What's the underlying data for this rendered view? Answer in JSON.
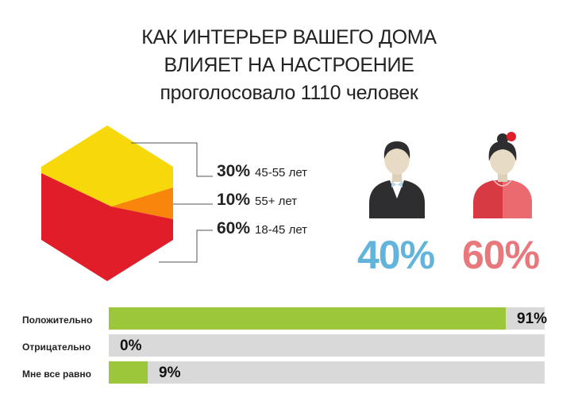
{
  "title": {
    "line1": "КАК ИНТЕРЬЕР ВАШЕГО ДОМА",
    "line2": "ВЛИЯЕТ НА НАСТРОЕНИЕ",
    "line3": "проголосовало 1110 человек"
  },
  "colors": {
    "yellow": "#f7d80a",
    "orange": "#f8860d",
    "red": "#e11d2a",
    "green": "#9dc73a",
    "track": "#d9d9d9",
    "male_blue": "#62b4dc",
    "female_pink": "#e9787d"
  },
  "chart_data": [
    {
      "type": "pie",
      "title": "",
      "slices": [
        {
          "value": 30,
          "pct_label": "30%",
          "label": "45-55 лет",
          "color": "#f7d80a"
        },
        {
          "value": 10,
          "pct_label": "10%",
          "label": "55+ лет",
          "color": "#f8860d"
        },
        {
          "value": 60,
          "pct_label": "60%",
          "label": "18-45 лет",
          "color": "#e11d2a"
        }
      ]
    },
    {
      "type": "bar",
      "categories": [
        "male",
        "female"
      ],
      "icons": [
        "man-icon",
        "woman-icon"
      ],
      "values": [
        40,
        60
      ],
      "labels": [
        "40%",
        "60%"
      ],
      "colors": [
        "#62b4dc",
        "#e9787d"
      ]
    },
    {
      "type": "bar",
      "orientation": "horizontal",
      "categories": [
        "Положительно",
        "Отрицательно",
        "Мне все равно"
      ],
      "values": [
        91,
        0,
        9
      ],
      "labels": [
        "91%",
        "0%",
        "9%"
      ],
      "xlim": [
        0,
        100
      ],
      "color": "#9dc73a"
    }
  ]
}
